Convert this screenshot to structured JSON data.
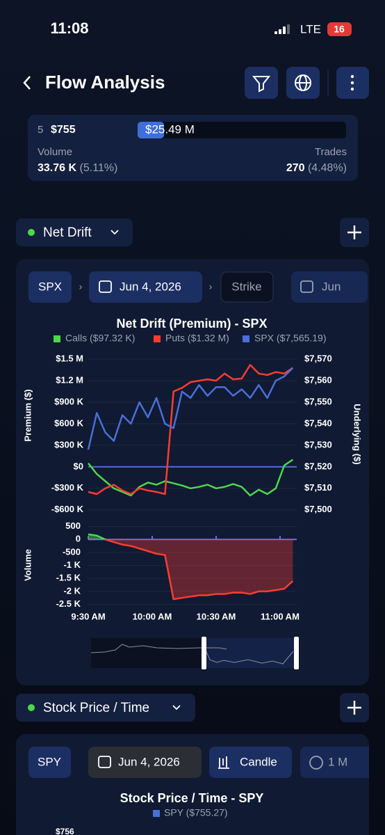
{
  "status_bar": {
    "time": "11:08",
    "network": "LTE",
    "battery": "16"
  },
  "header": {
    "title": "Flow Analysis"
  },
  "summary": {
    "index": "5",
    "strike": "$755",
    "premium": "$25.49 M",
    "volume_label": "Volume",
    "volume": "33.76 K",
    "volume_pct": "(5.11%)",
    "trades_label": "Trades",
    "trades": "270",
    "trades_pct": "(4.48%)"
  },
  "sections": [
    {
      "label": "Net Drift",
      "filters": [
        "SPX",
        "Jun 4, 2026",
        "Strike",
        "Jun"
      ]
    },
    {
      "label": "Stock Price / Time",
      "filters": [
        "SPY",
        "Jun 4, 2026",
        "Candle",
        "1 M"
      ]
    }
  ],
  "chart_data": [
    {
      "type": "line",
      "title": "Net Drift (Premium) - SPX",
      "ylabel": "Premium ($)",
      "y2label": "Underlying ($)",
      "grid": true,
      "x": [
        0,
        4,
        8,
        12,
        16,
        20,
        24,
        28,
        32,
        36,
        40,
        44,
        48,
        52,
        56,
        60,
        64,
        68,
        72,
        76,
        80,
        84,
        88,
        92,
        96
      ],
      "xlim": [
        0,
        98
      ],
      "ylim": [
        -690000,
        1560000
      ],
      "yticks": [
        {
          "value": 1500000,
          "label": "$1.5 M"
        },
        {
          "value": 1200000,
          "label": "$1.2 M"
        },
        {
          "value": 900000,
          "label": "$900 K"
        },
        {
          "value": 600000,
          "label": "$600 K"
        },
        {
          "value": 300000,
          "label": "$300 K"
        },
        {
          "value": 0,
          "label": "$0"
        },
        {
          "value": -300000,
          "label": "-$300 K"
        },
        {
          "value": -600000,
          "label": "-$600 K"
        }
      ],
      "y2lim": [
        7497,
        7572
      ],
      "y2ticks": [
        {
          "value": 7570,
          "label": "$7,570"
        },
        {
          "value": 7560,
          "label": "$7,560"
        },
        {
          "value": 7550,
          "label": "$7,550"
        },
        {
          "value": 7540,
          "label": "$7,540"
        },
        {
          "value": 7530,
          "label": "$7,530"
        },
        {
          "value": 7520,
          "label": "$7,520"
        },
        {
          "value": 7510,
          "label": "$7,510"
        },
        {
          "value": 7500,
          "label": "$7,500"
        }
      ],
      "series": [
        {
          "name": "Calls ($97.32 K)",
          "color": "#4cd84a",
          "values": [
            50000,
            -100000,
            -200000,
            -300000,
            -350000,
            -400000,
            -280000,
            -220000,
            -250000,
            -200000,
            -230000,
            -260000,
            -300000,
            -280000,
            -250000,
            -300000,
            -280000,
            -240000,
            -280000,
            -400000,
            -320000,
            -380000,
            -300000,
            20000,
            100000
          ]
        },
        {
          "name": "Puts ($1.32 M)",
          "color": "#ff3b30",
          "values": [
            -350000,
            -380000,
            -300000,
            -250000,
            -330000,
            -380000,
            -300000,
            -330000,
            -350000,
            -380000,
            1050000,
            1100000,
            1180000,
            1200000,
            1220000,
            1200000,
            1300000,
            1220000,
            1230000,
            1420000,
            1300000,
            1280000,
            1320000,
            1300000,
            1380000
          ]
        },
        {
          "name": "SPX ($7,565.19)",
          "color": "#4a6fd8",
          "axis": "y2",
          "values": [
            7528,
            7545,
            7536,
            7532,
            7544,
            7540,
            7550,
            7543,
            7552,
            7540,
            7538,
            7555,
            7552,
            7558,
            7553,
            7557,
            7557,
            7553,
            7556,
            7552,
            7558,
            7552,
            7560,
            7562,
            7566
          ]
        }
      ]
    },
    {
      "type": "area",
      "ylabel": "Volume",
      "color": "#ff3b30",
      "pos_color": "#4cd84a",
      "x": [
        0,
        4,
        8,
        12,
        16,
        20,
        24,
        28,
        32,
        36,
        40,
        44,
        48,
        52,
        56,
        60,
        64,
        68,
        72,
        76,
        80,
        84,
        88,
        92,
        96
      ],
      "xlim": [
        0,
        98
      ],
      "values": [
        200,
        150,
        0,
        -100,
        -200,
        -250,
        -350,
        -450,
        -550,
        -600,
        -2300,
        -2250,
        -2200,
        -2150,
        -2150,
        -2100,
        -2100,
        -2050,
        -2050,
        -2100,
        -2000,
        -2000,
        -1950,
        -1900,
        -1600
      ],
      "ylim": [
        -2700,
        650
      ],
      "yticks": [
        500,
        0,
        -500,
        {
          "value": -1000,
          "label": "-1 K"
        },
        {
          "value": -1500,
          "label": "-1.5 K"
        },
        {
          "value": -2000,
          "label": "-2 K"
        },
        {
          "value": -2500,
          "label": "-2.5 K"
        }
      ],
      "xticks": [
        {
          "value": 0,
          "label": "9:30 AM"
        },
        {
          "value": 30,
          "label": "10:00 AM"
        },
        {
          "value": 60,
          "label": "10:30 AM"
        },
        {
          "value": 90,
          "label": "11:00 AM"
        }
      ]
    },
    {
      "type": "line",
      "title": "Stock Price / Time - SPY",
      "series": [
        {
          "name": "SPY ($755.27)",
          "color": "#4a6fd8"
        }
      ],
      "yticks": [
        {
          "value": 756,
          "label": "$756"
        }
      ]
    }
  ]
}
